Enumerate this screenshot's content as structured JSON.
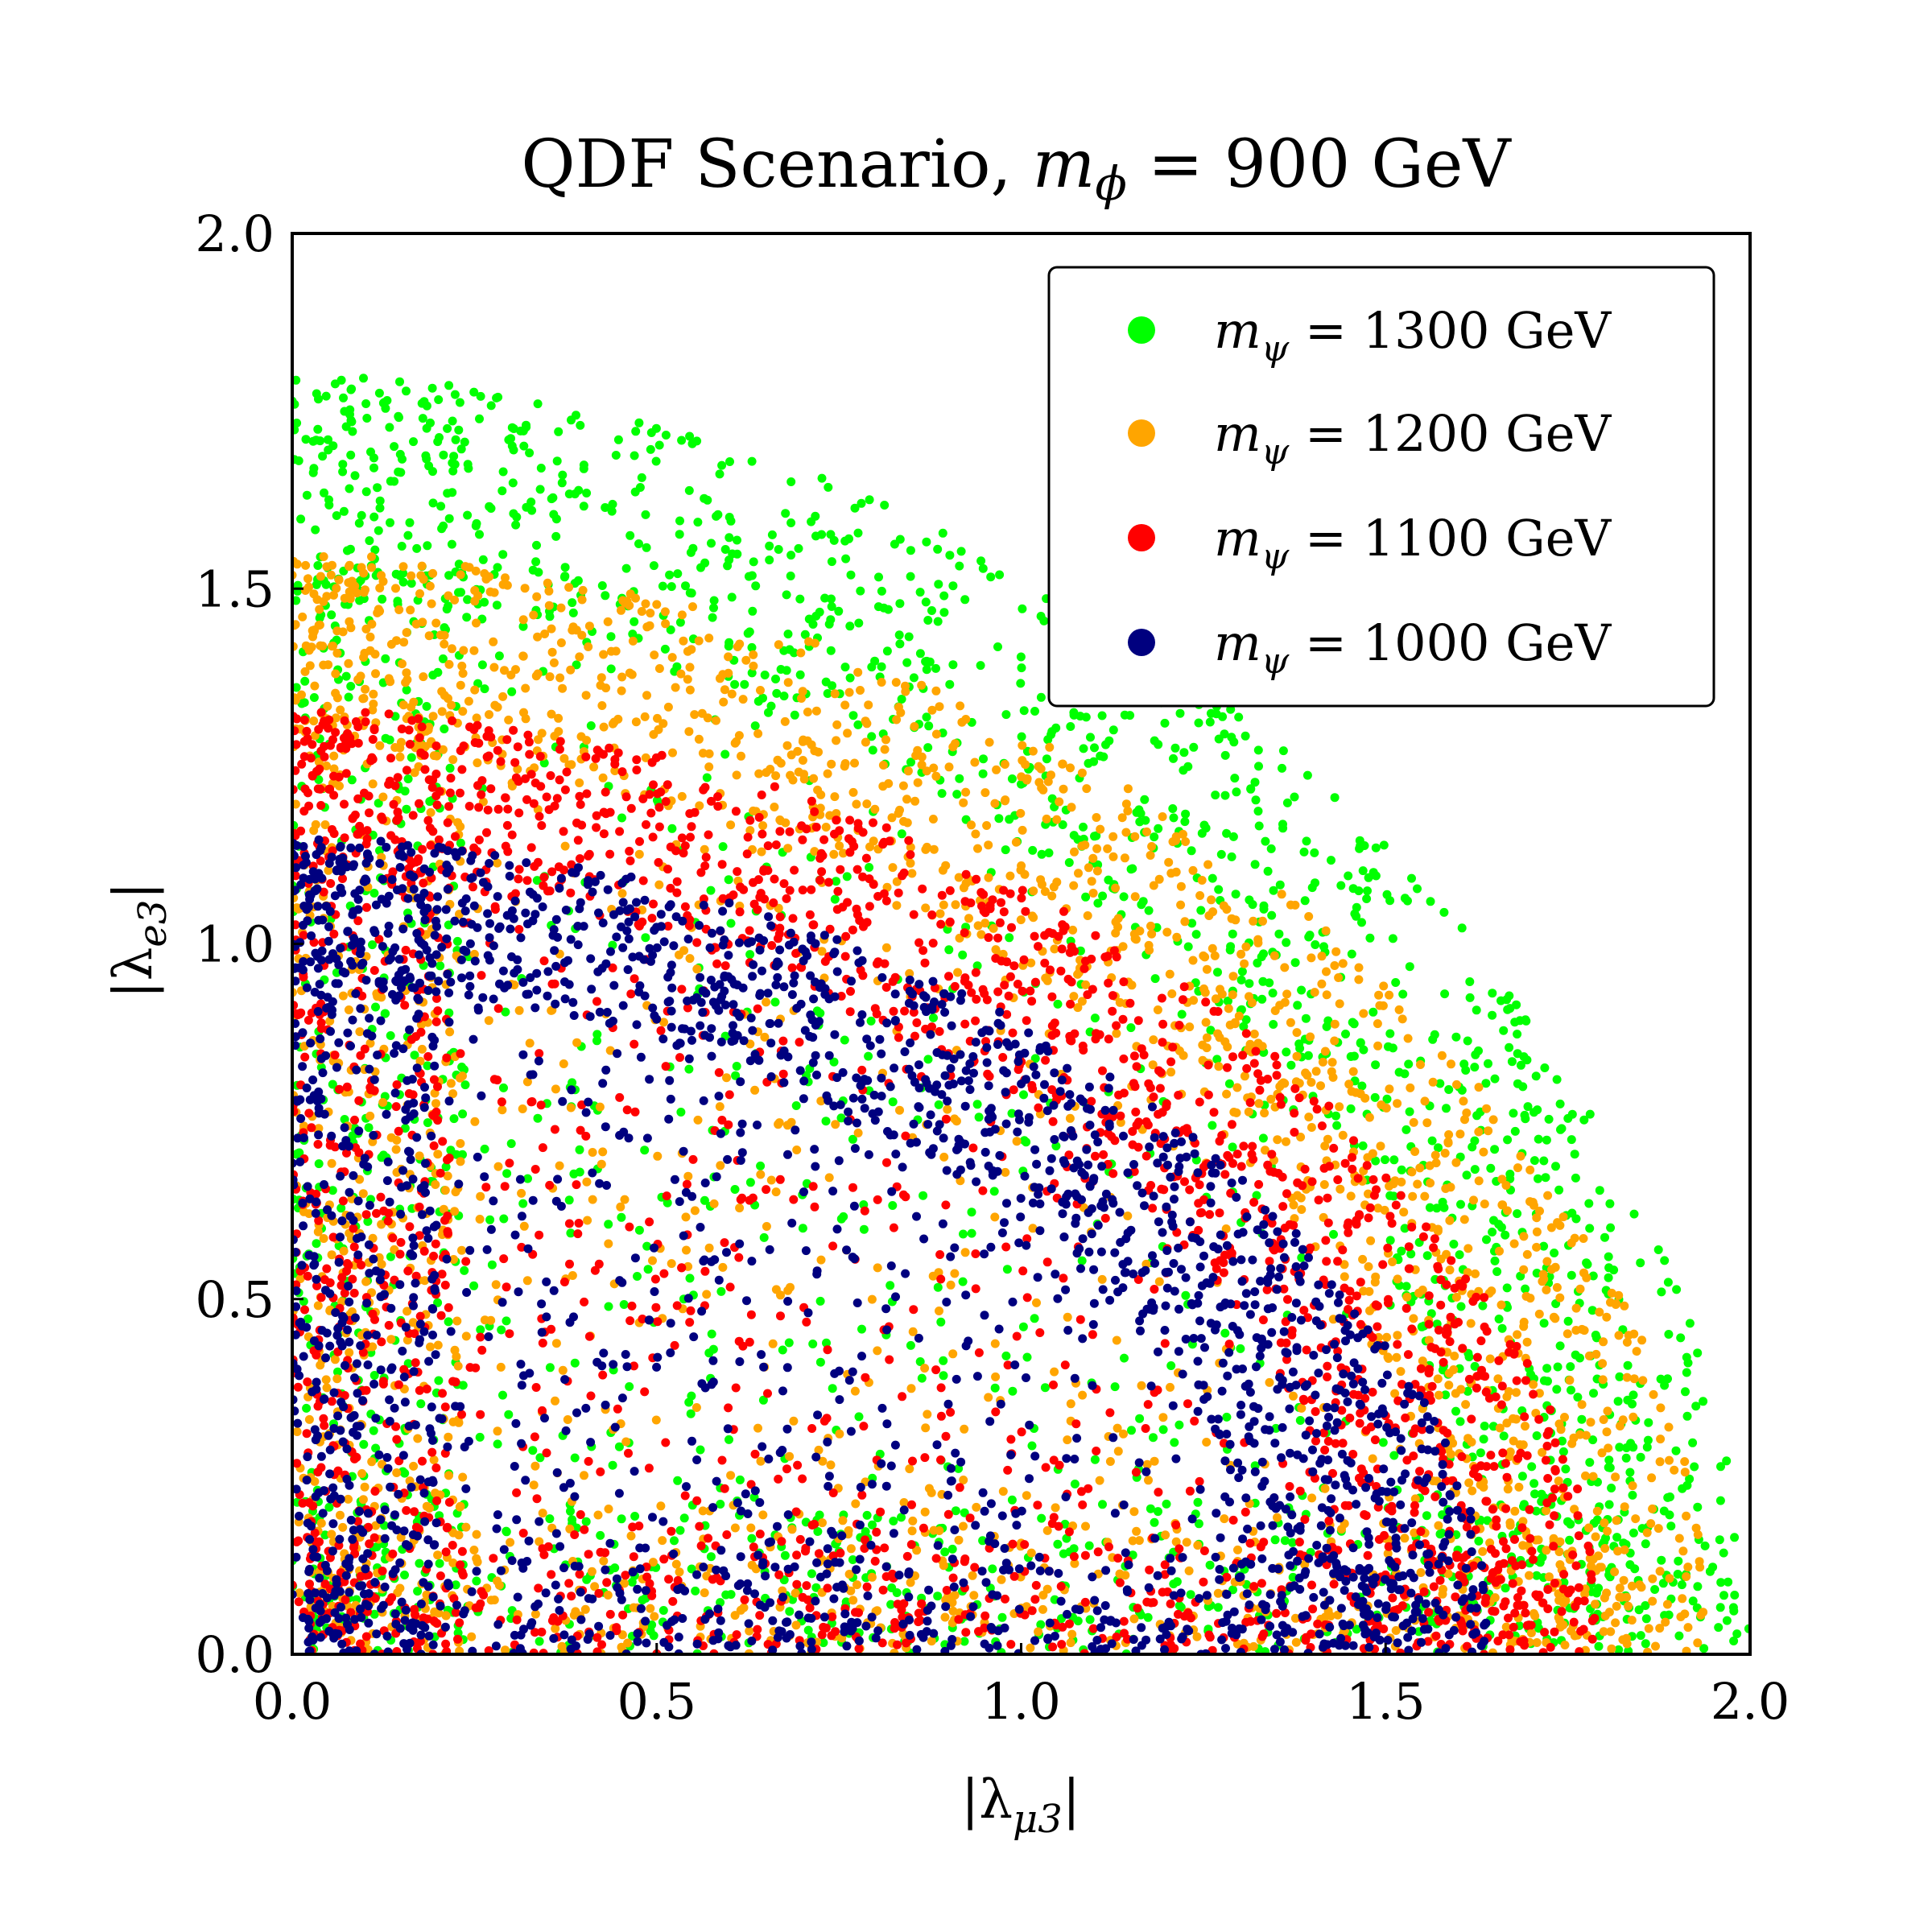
{
  "chart_data": {
    "type": "scatter",
    "title_text": "QDF Scenario, ",
    "title_math_var": "m",
    "title_math_sub": "ϕ",
    "title_math_rest": " = 900 GeV",
    "xlabel": {
      "pre": "|λ",
      "sub": "μ3",
      "post": "|"
    },
    "ylabel": {
      "pre": "|λ",
      "sub": "e3",
      "post": "|"
    },
    "xlim": [
      0.0,
      2.0
    ],
    "ylim": [
      0.0,
      2.0
    ],
    "x_ticks": [
      "0.0",
      "0.5",
      "1.0",
      "1.5",
      "2.0"
    ],
    "y_ticks": [
      "0.0",
      "0.5",
      "1.0",
      "1.5",
      "2.0"
    ],
    "grid": false,
    "legend_position": "top-right",
    "series": [
      {
        "name": "m_ψ = 1300 GeV",
        "legend_var": "m",
        "legend_sub": "ψ",
        "legend_rest": " = 1300 GeV",
        "color": "#00ff00",
        "radius": 1.8,
        "y_intercept": 1.8,
        "x_intercept": 2.0,
        "shape": 1.9
      },
      {
        "name": "m_ψ = 1200 GeV",
        "legend_var": "m",
        "legend_sub": "ψ",
        "legend_rest": " = 1200 GeV",
        "color": "#ffa500",
        "radius": 1.55,
        "y_intercept": 1.55,
        "x_intercept": 1.95,
        "shape": 1.9
      },
      {
        "name": "m_ψ = 1100 GeV",
        "legend_var": "m",
        "legend_sub": "ψ",
        "legend_rest": " = 1100 GeV",
        "color": "#ff0000",
        "radius": 1.35,
        "y_intercept": 1.33,
        "x_intercept": 1.8,
        "shape": 1.9
      },
      {
        "name": "m_ψ = 1000 GeV",
        "legend_var": "m",
        "legend_sub": "ψ",
        "legend_rest": " = 1000 GeV",
        "color": "#00007f",
        "radius": 1.15,
        "y_intercept": 1.15,
        "x_intercept": 1.65,
        "shape": 1.9
      }
    ]
  }
}
